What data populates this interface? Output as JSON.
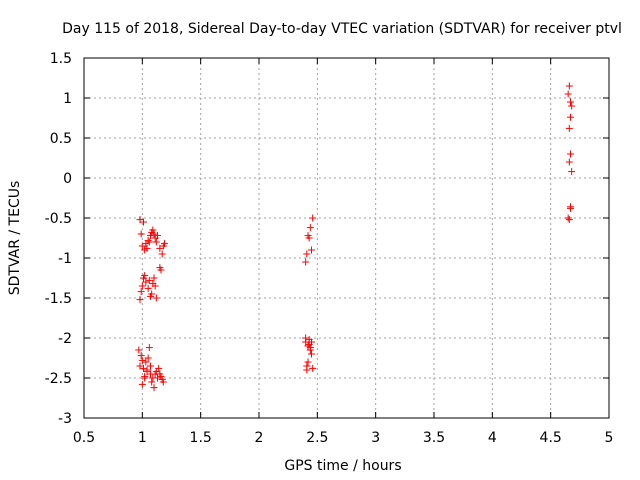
{
  "chart_data": {
    "type": "scatter",
    "title": "Day 115 of 2018, Sidereal Day-to-day VTEC variation (SDTVAR) for receiver ptvl",
    "xlabel": "GPS time / hours",
    "ylabel": "SDTVAR / TECUs",
    "xlim": [
      0.5,
      5
    ],
    "ylim": [
      -3,
      1.5
    ],
    "xticks": [
      "0.5",
      "1",
      "1.5",
      "2",
      "2.5",
      "3",
      "3.5",
      "4",
      "4.5",
      "5"
    ],
    "yticks": [
      "-3",
      "-2.5",
      "-2",
      "-1.5",
      "-1",
      "-0.5",
      "0",
      "0.5",
      "1",
      "1.5"
    ],
    "grid": true,
    "marker": "+",
    "marker_color": "#ff0000",
    "series": [
      {
        "name": "SDTVAR",
        "x": [
          0.98,
          0.99,
          1.0,
          1.02,
          1.03,
          1.05,
          1.07,
          1.08,
          1.09,
          1.1,
          1.11,
          1.12,
          1.13,
          1.15,
          1.17,
          1.18,
          1.19,
          1.01,
          1.04,
          1.06,
          0.98,
          0.99,
          1.0,
          1.01,
          1.02,
          1.03,
          1.05,
          1.06,
          1.07,
          1.08,
          1.09,
          1.1,
          1.11,
          1.12,
          1.15,
          1.16,
          0.97,
          0.98,
          0.99,
          1.0,
          1.01,
          1.02,
          1.03,
          1.04,
          1.05,
          1.06,
          1.07,
          1.08,
          1.09,
          1.1,
          1.11,
          1.12,
          1.13,
          1.14,
          1.15,
          1.16,
          1.17,
          1.18,
          1.0,
          1.02,
          1.04,
          1.07,
          2.4,
          2.41,
          2.43,
          2.44,
          2.42,
          2.45,
          2.46,
          2.4,
          2.41,
          2.42,
          2.43,
          2.44,
          2.45,
          2.41,
          2.43,
          2.42,
          2.44,
          2.46,
          2.4,
          2.45,
          4.65,
          4.66,
          4.67,
          4.68,
          4.67,
          4.66,
          4.67,
          4.66,
          4.68,
          4.67,
          4.65,
          4.66,
          4.67
        ],
        "y": [
          -0.52,
          -0.7,
          -0.85,
          -0.9,
          -0.82,
          -0.78,
          -0.72,
          -0.68,
          -0.65,
          -0.7,
          -0.75,
          -0.8,
          -0.72,
          -0.88,
          -0.95,
          -0.85,
          -0.82,
          -0.55,
          -0.88,
          -0.8,
          -1.52,
          -1.42,
          -1.35,
          -1.25,
          -1.22,
          -1.3,
          -1.38,
          -1.28,
          -1.48,
          -1.45,
          -1.32,
          -1.25,
          -1.35,
          -1.5,
          -1.12,
          -1.15,
          -2.15,
          -2.35,
          -2.22,
          -2.28,
          -2.38,
          -2.48,
          -2.3,
          -2.42,
          -2.25,
          -2.12,
          -2.45,
          -2.55,
          -2.5,
          -2.62,
          -2.45,
          -2.42,
          -2.5,
          -2.38,
          -2.45,
          -2.48,
          -2.52,
          -2.55,
          -2.58,
          -2.5,
          -2.4,
          -2.35,
          -1.05,
          -0.95,
          -0.75,
          -0.62,
          -0.72,
          -0.9,
          -0.5,
          -2.05,
          -2.35,
          -2.1,
          -2.02,
          -2.15,
          -2.2,
          -2.4,
          -2.08,
          -2.3,
          -2.12,
          -2.38,
          -2.0,
          -2.05,
          1.05,
          1.15,
          0.95,
          0.9,
          0.76,
          0.62,
          0.3,
          0.2,
          0.08,
          -0.38,
          -0.5,
          -0.52,
          -0.36
        ]
      }
    ]
  }
}
